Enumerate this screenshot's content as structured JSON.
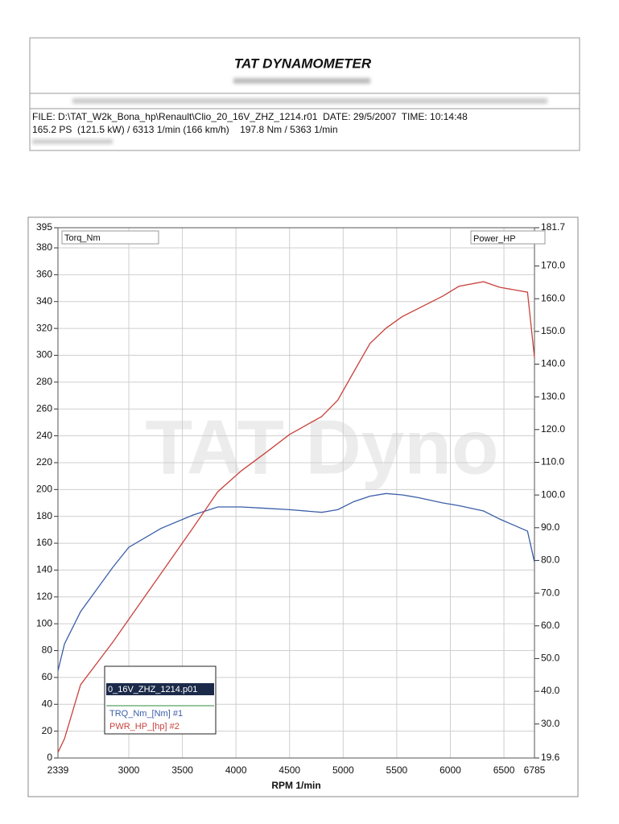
{
  "header": {
    "title": "TAT DYNAMOMETER",
    "file_line": "FILE: D:\\TAT_W2k_Bona_hp\\Renault\\Clio_20_16V_ZHZ_1214.r01  DATE: 29/5/2007  TIME: 10:14:48",
    "result_line": "165.2 PS  (121.5 kW) / 6313 1/min (166 km/h)    197.8 Nm / 5363 1/min"
  },
  "chart_data": {
    "type": "line",
    "watermark": "TAT Dyno",
    "xlabel": "RPM 1/min",
    "ylabel": "Torq_Nm",
    "y2label": "Power_HP",
    "legend_title": "0_16V_ZHZ_1214.p01",
    "x": [
      2339,
      2400,
      2550,
      2850,
      3000,
      3300,
      3600,
      3830,
      4050,
      4280,
      4500,
      4800,
      4950,
      5100,
      5250,
      5400,
      5550,
      5700,
      5930,
      6080,
      6310,
      6460,
      6720,
      6785
    ],
    "series": [
      {
        "name": "TRQ_Nm_[Nm] #1",
        "color": "#3a5ea8",
        "values": [
          65,
          85,
          109,
          142,
          157,
          171,
          181,
          187,
          187,
          186,
          185,
          183,
          185,
          191,
          195,
          197,
          196,
          194,
          190,
          188,
          184,
          178,
          169,
          146
        ]
      },
      {
        "name": "PWR_HP_[hp] #2",
        "color": "#c8423c",
        "axis": "y2",
        "values": [
          21.3,
          25.5,
          42,
          55,
          62,
          76,
          90,
          101,
          107.4,
          113,
          118.5,
          124,
          129,
          137.7,
          146.3,
          151,
          154.5,
          157,
          160.8,
          163.8,
          165.2,
          163.5,
          162,
          142
        ]
      }
    ],
    "xlim": [
      2339,
      6785
    ],
    "xticks": [
      2339,
      3000,
      3500,
      4000,
      4500,
      5000,
      5500,
      6000,
      6500,
      6785
    ],
    "ylim": [
      0,
      395
    ],
    "yticks": [
      0,
      20,
      40,
      60,
      80,
      100,
      120,
      140,
      160,
      180,
      200,
      220,
      240,
      260,
      280,
      300,
      320,
      340,
      360,
      380,
      395
    ],
    "y2lim": [
      19.6,
      181.7
    ],
    "y2ticks": [
      19.6,
      {
        "value": 30,
        "label": "30.0"
      },
      {
        "value": 40,
        "label": "40.0"
      },
      {
        "value": 50,
        "label": "50.0"
      },
      {
        "value": 60,
        "label": "60.0"
      },
      {
        "value": 70,
        "label": "70.0"
      },
      {
        "value": 80,
        "label": "80.0"
      },
      {
        "value": 90,
        "label": "90.0"
      },
      {
        "value": 100,
        "label": "100.0"
      },
      {
        "value": 110,
        "label": "110.0"
      },
      {
        "value": 120,
        "label": "120.0"
      },
      {
        "value": 130,
        "label": "130.0"
      },
      {
        "value": 140,
        "label": "140.0"
      },
      {
        "value": 150,
        "label": "150.0"
      },
      {
        "value": 160,
        "label": "160.0"
      },
      {
        "value": 170,
        "label": "170.0"
      },
      181.7
    ],
    "grid": true
  }
}
